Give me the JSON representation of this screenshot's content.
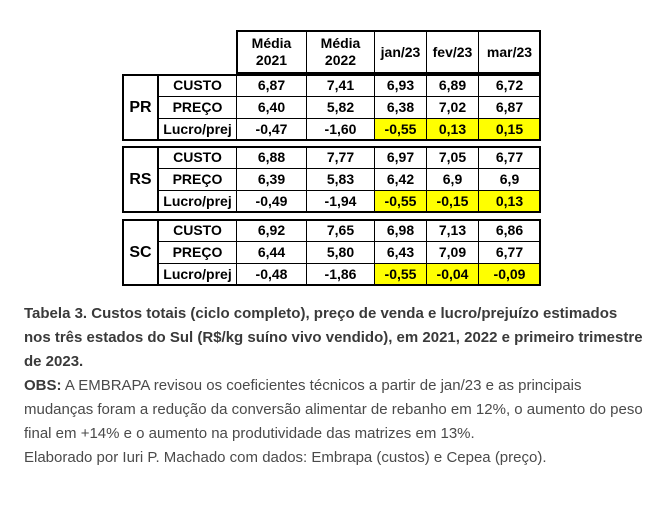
{
  "table": {
    "header": [
      [
        "Média",
        "2021"
      ],
      [
        "Média",
        "2022"
      ],
      [
        "jan/23"
      ],
      [
        "fev/23"
      ],
      [
        "mar/23"
      ]
    ],
    "groups": [
      {
        "state": "PR",
        "rows": [
          {
            "label": "CUSTO",
            "values": [
              "6,87",
              "7,41",
              "6,93",
              "6,89",
              "6,72"
            ]
          },
          {
            "label": "PREÇO",
            "values": [
              "6,40",
              "5,82",
              "6,38",
              "7,02",
              "6,87"
            ]
          },
          {
            "label": "Lucro/prej",
            "values": [
              "-0,47",
              "-1,60",
              "-0,55",
              "0,13",
              "0,15"
            ]
          }
        ]
      },
      {
        "state": "RS",
        "rows": [
          {
            "label": "CUSTO",
            "values": [
              "6,88",
              "7,77",
              "6,97",
              "7,05",
              "6,77"
            ]
          },
          {
            "label": "PREÇO",
            "values": [
              "6,39",
              "5,83",
              "6,42",
              "6,9",
              "6,9"
            ]
          },
          {
            "label": "Lucro/prej",
            "values": [
              "-0,49",
              "-1,94",
              "-0,55",
              "-0,15",
              "0,13"
            ]
          }
        ]
      },
      {
        "state": "SC",
        "rows": [
          {
            "label": "CUSTO",
            "values": [
              "6,92",
              "7,65",
              "6,98",
              "7,13",
              "6,86"
            ]
          },
          {
            "label": "PREÇO",
            "values": [
              "6,44",
              "5,80",
              "6,43",
              "7,09",
              "6,77"
            ]
          },
          {
            "label": "Lucro/prej",
            "values": [
              "-0,48",
              "-1,86",
              "-0,55",
              "-0,04",
              "-0,09"
            ]
          }
        ]
      }
    ]
  },
  "caption": {
    "title": "Tabela 3. Custos totais (ciclo completo), preço de venda e lucro/prejuízo estimados nos três estados do Sul (R$/kg suíno vivo vendido), em 2021, 2022 e primeiro trimestre de 2023.",
    "obs_label": "OBS:",
    "obs_text": "A EMBRAPA revisou os coeficientes técnicos a partir de jan/23 e as principais mudanças foram a redução da conversão alimentar de rebanho em 12%, o aumento do peso final em +14% e o aumento na produtividade das matrizes em 13%.",
    "credit": "Elaborado por Iuri P. Machado com dados: Embrapa (custos) e Cepea (preço)."
  }
}
